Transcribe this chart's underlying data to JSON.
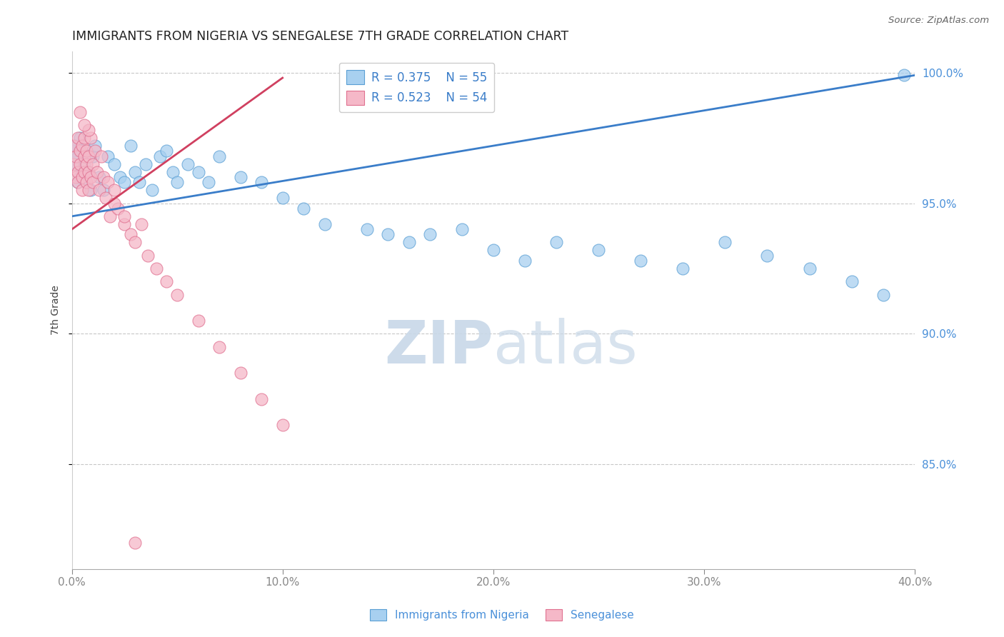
{
  "title": "IMMIGRANTS FROM NIGERIA VS SENEGALESE 7TH GRADE CORRELATION CHART",
  "source": "Source: ZipAtlas.com",
  "ylabel": "7th Grade",
  "x_min": 0.0,
  "x_max": 0.4,
  "y_min": 0.81,
  "y_max": 1.008,
  "y_ticks": [
    0.85,
    0.9,
    0.95,
    1.0
  ],
  "y_tick_labels": [
    "85.0%",
    "90.0%",
    "95.0%",
    "100.0%"
  ],
  "x_ticks": [
    0.0,
    0.1,
    0.2,
    0.3,
    0.4
  ],
  "x_tick_labels": [
    "0.0%",
    "10.0%",
    "20.0%",
    "30.0%",
    "40.0%"
  ],
  "legend1_R": "R = 0.375",
  "legend1_N": "N = 55",
  "legend2_R": "R = 0.523",
  "legend2_N": "N = 54",
  "blue_fill": "#A8D0F0",
  "blue_edge": "#5A9FD4",
  "pink_fill": "#F5B8C8",
  "pink_edge": "#E07090",
  "blue_line_color": "#3A7DC9",
  "pink_line_color": "#D04060",
  "legend_text_color": "#3A7DC9",
  "axis_label_color": "#4A90D9",
  "title_color": "#222222",
  "watermark_color": "#D8E8F5",
  "grid_color": "#C8C8C8",
  "source_color": "#666666",
  "blue_scatter_x": [
    0.001,
    0.002,
    0.002,
    0.003,
    0.003,
    0.004,
    0.004,
    0.005,
    0.006,
    0.007,
    0.008,
    0.009,
    0.01,
    0.011,
    0.013,
    0.015,
    0.017,
    0.02,
    0.023,
    0.025,
    0.028,
    0.03,
    0.032,
    0.035,
    0.038,
    0.042,
    0.045,
    0.048,
    0.05,
    0.055,
    0.06,
    0.065,
    0.07,
    0.08,
    0.09,
    0.1,
    0.11,
    0.12,
    0.14,
    0.15,
    0.16,
    0.17,
    0.185,
    0.2,
    0.215,
    0.23,
    0.25,
    0.27,
    0.29,
    0.31,
    0.33,
    0.35,
    0.37,
    0.385,
    0.395
  ],
  "blue_scatter_y": [
    0.97,
    0.965,
    0.972,
    0.958,
    0.968,
    0.96,
    0.975,
    0.97,
    0.965,
    0.958,
    0.962,
    0.955,
    0.968,
    0.972,
    0.96,
    0.955,
    0.968,
    0.965,
    0.96,
    0.958,
    0.972,
    0.962,
    0.958,
    0.965,
    0.955,
    0.968,
    0.97,
    0.962,
    0.958,
    0.965,
    0.962,
    0.958,
    0.968,
    0.96,
    0.958,
    0.952,
    0.948,
    0.942,
    0.94,
    0.938,
    0.935,
    0.938,
    0.94,
    0.932,
    0.928,
    0.935,
    0.932,
    0.928,
    0.925,
    0.935,
    0.93,
    0.925,
    0.92,
    0.915,
    0.999
  ],
  "pink_scatter_x": [
    0.001,
    0.001,
    0.002,
    0.002,
    0.003,
    0.003,
    0.003,
    0.004,
    0.004,
    0.005,
    0.005,
    0.005,
    0.006,
    0.006,
    0.006,
    0.007,
    0.007,
    0.007,
    0.008,
    0.008,
    0.008,
    0.009,
    0.009,
    0.01,
    0.01,
    0.011,
    0.012,
    0.013,
    0.014,
    0.015,
    0.016,
    0.017,
    0.018,
    0.02,
    0.022,
    0.025,
    0.028,
    0.03,
    0.033,
    0.036,
    0.04,
    0.045,
    0.05,
    0.06,
    0.07,
    0.08,
    0.09,
    0.1,
    0.02,
    0.025,
    0.008,
    0.006,
    0.004,
    0.03
  ],
  "pink_scatter_y": [
    0.972,
    0.965,
    0.968,
    0.96,
    0.975,
    0.962,
    0.958,
    0.97,
    0.965,
    0.972,
    0.96,
    0.955,
    0.968,
    0.962,
    0.975,
    0.958,
    0.97,
    0.965,
    0.962,
    0.955,
    0.968,
    0.96,
    0.975,
    0.965,
    0.958,
    0.97,
    0.962,
    0.955,
    0.968,
    0.96,
    0.952,
    0.958,
    0.945,
    0.955,
    0.948,
    0.942,
    0.938,
    0.935,
    0.942,
    0.93,
    0.925,
    0.92,
    0.915,
    0.905,
    0.895,
    0.885,
    0.875,
    0.865,
    0.95,
    0.945,
    0.978,
    0.98,
    0.985,
    0.82
  ],
  "blue_line_x0": 0.0,
  "blue_line_y0": 0.945,
  "blue_line_x1": 0.4,
  "blue_line_y1": 0.999,
  "pink_line_x0": 0.0,
  "pink_line_y0": 0.94,
  "pink_line_x1": 0.1,
  "pink_line_y1": 0.998
}
